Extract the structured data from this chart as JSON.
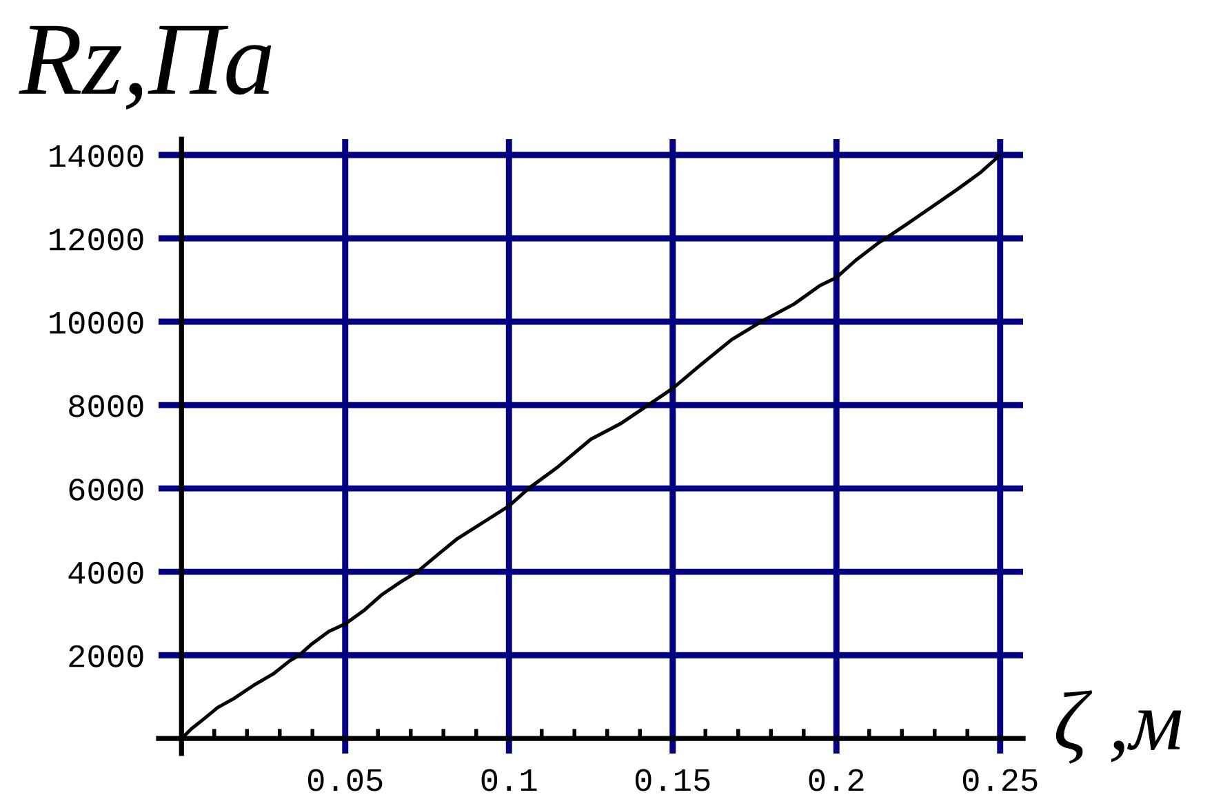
{
  "chart_data": {
    "type": "line",
    "xlabel": "ζ ,м",
    "ylabel": "Rz,Па",
    "xlim": [
      -0.007,
      0.257
    ],
    "ylim": [
      -360,
      14380
    ],
    "xticks": [
      {
        "value": 0.01,
        "label": null
      },
      {
        "value": 0.02,
        "label": null
      },
      {
        "value": 0.03,
        "label": null
      },
      {
        "value": 0.04,
        "label": null
      },
      0.05,
      {
        "value": 0.06,
        "label": null
      },
      {
        "value": 0.07,
        "label": null
      },
      {
        "value": 0.08,
        "label": null
      },
      {
        "value": 0.09,
        "label": null
      },
      0.1,
      {
        "value": 0.11,
        "label": null
      },
      {
        "value": 0.12,
        "label": null
      },
      {
        "value": 0.13,
        "label": null
      },
      {
        "value": 0.14,
        "label": null
      },
      0.15,
      {
        "value": 0.16,
        "label": null
      },
      {
        "value": 0.17,
        "label": null
      },
      {
        "value": 0.18,
        "label": null
      },
      {
        "value": 0.19,
        "label": null
      },
      0.2,
      {
        "value": 0.21,
        "label": null
      },
      {
        "value": 0.22,
        "label": null
      },
      {
        "value": 0.23,
        "label": null
      },
      {
        "value": 0.24,
        "label": null
      },
      0.25
    ],
    "yticks": [
      2000,
      4000,
      6000,
      8000,
      10000,
      12000,
      14000
    ],
    "grid": true,
    "marker": "none",
    "line_style": "solid",
    "x": [
      0,
      0.003,
      0.007,
      0.011,
      0.016,
      0.0225,
      0.028,
      0.033,
      0.036,
      0.0395,
      0.045,
      0.05,
      0.056,
      0.061,
      0.067,
      0.072,
      0.079,
      0.084,
      0.092,
      0.1,
      0.106,
      0.115,
      0.125,
      0.134,
      0.1425,
      0.15,
      0.158,
      0.168,
      0.177,
      0.187,
      0.195,
      0.2,
      0.206,
      0.213,
      0.215,
      0.2215,
      0.2285,
      0.237,
      0.244,
      0.25
    ],
    "series": [
      {
        "color": "#000000",
        "values": [
          0,
          230,
          480,
          740,
          960,
          1300,
          1550,
          1860,
          2000,
          2250,
          2570,
          2750,
          3090,
          3440,
          3760,
          4000,
          4460,
          4780,
          5180,
          5580,
          6000,
          6520,
          7180,
          7550,
          8000,
          8400,
          8930,
          9570,
          10000,
          10420,
          10870,
          11060,
          11480,
          11900,
          12000,
          12340,
          12720,
          13180,
          13580,
          14000
        ]
      }
    ]
  }
}
